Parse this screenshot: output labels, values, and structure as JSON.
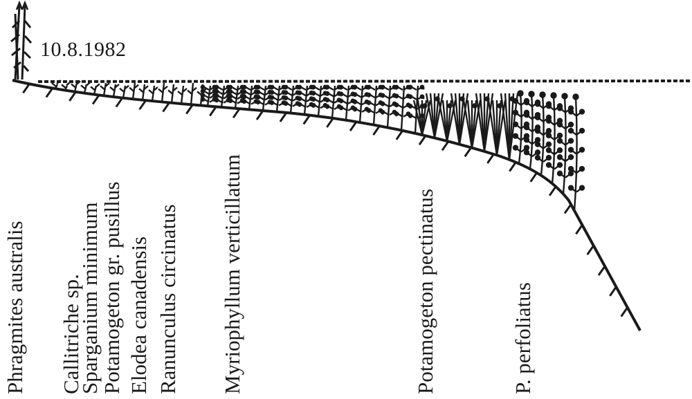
{
  "date": "10.8.1982",
  "species": [
    "Phragmites australis",
    "Callitriche sp.",
    "Sparganium minimum",
    "Potamogeton gr. pusillus",
    "Elodea canadensis",
    "Ranunculus circinatus",
    "Myriophyllum verticillatum",
    "Potamogeton pectinatus",
    "P. perfoliatus"
  ],
  "colors": {
    "ink": "#1a1a1a",
    "background": "#ffffff"
  }
}
